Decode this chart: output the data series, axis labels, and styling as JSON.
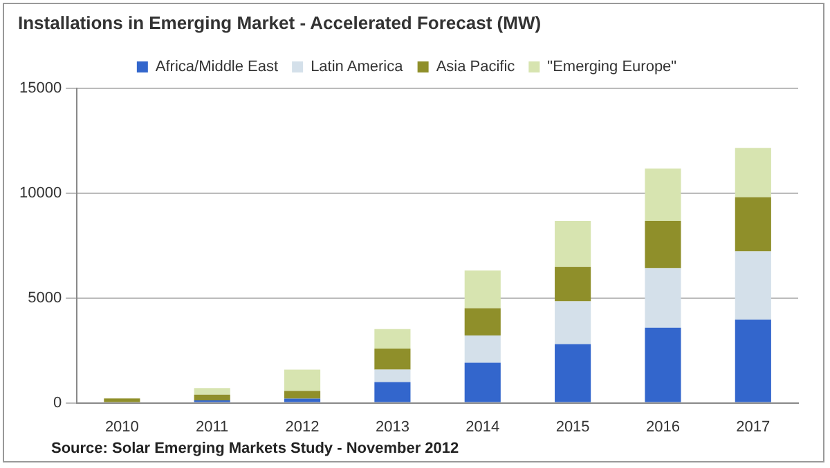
{
  "chart_data": {
    "type": "bar",
    "title": "Installations in Emerging Market - Accelerated Forecast (MW)",
    "categories": [
      "2010",
      "2011",
      "2012",
      "2013",
      "2014",
      "2015",
      "2016",
      "2017"
    ],
    "series": [
      {
        "name": "Africa/Middle East",
        "color": "#3366cc",
        "values": [
          null,
          120,
          200,
          990,
          1910,
          2800,
          3580,
          3970
        ]
      },
      {
        "name": "Latin America",
        "color": "#d4e0ea",
        "values": [
          null,
          null,
          null,
          590,
          1300,
          2040,
          2840,
          3250
        ]
      },
      {
        "name": "Asia Pacific",
        "color": "#8f8f2a",
        "values": [
          210,
          270,
          370,
          1010,
          1300,
          1640,
          2260,
          2590
        ]
      },
      {
        "name": "\"Emerging Europe\"",
        "color": "#d7e4b0",
        "values": [
          null,
          310,
          1010,
          930,
          1810,
          2200,
          2490,
          2350
        ]
      }
    ],
    "stacked": true,
    "ylim": [
      0,
      15000
    ],
    "yticks": [
      0,
      5000,
      10000,
      15000
    ],
    "grid": "y",
    "legend": "top",
    "annotations": [
      "Source: Solar Emerging Markets Study - November 2012"
    ]
  }
}
